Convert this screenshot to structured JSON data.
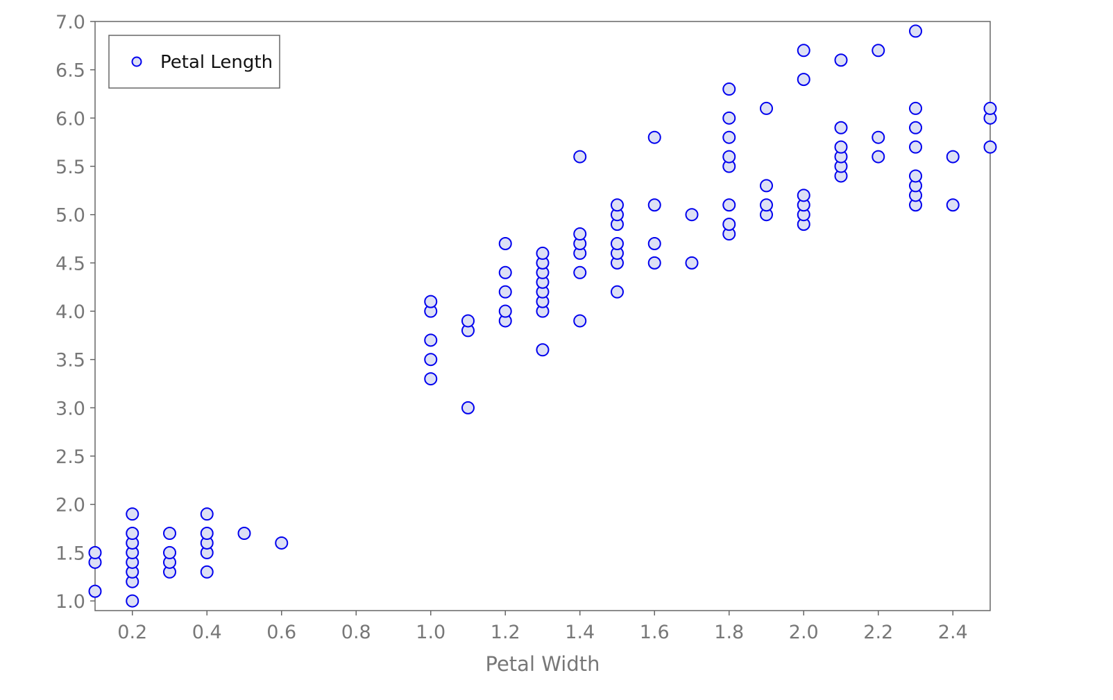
{
  "chart_data": {
    "type": "scatter",
    "xlabel": "Petal Width",
    "ylabel": "",
    "xlim": [
      0.1,
      2.5
    ],
    "ylim": [
      0.9,
      7.0
    ],
    "xticks": [
      "0.2",
      "0.4",
      "0.6",
      "0.8",
      "1.0",
      "1.2",
      "1.4",
      "1.6",
      "1.8",
      "2.0",
      "2.2",
      "2.4"
    ],
    "yticks": [
      "1.0",
      "1.5",
      "2.0",
      "2.5",
      "3.0",
      "3.5",
      "4.0",
      "4.5",
      "5.0",
      "5.5",
      "6.0",
      "6.5",
      "7.0"
    ],
    "grid": false,
    "legend_position": "top-left",
    "series": [
      {
        "name": "Petal Length",
        "marker_stroke": "#0000ee",
        "marker_fill": "#dde0f5",
        "points": [
          [
            0.1,
            1.1
          ],
          [
            0.1,
            1.4
          ],
          [
            0.1,
            1.5
          ],
          [
            0.2,
            1.0
          ],
          [
            0.2,
            1.2
          ],
          [
            0.2,
            1.3
          ],
          [
            0.2,
            1.4
          ],
          [
            0.2,
            1.5
          ],
          [
            0.2,
            1.6
          ],
          [
            0.2,
            1.7
          ],
          [
            0.2,
            1.9
          ],
          [
            0.3,
            1.3
          ],
          [
            0.3,
            1.4
          ],
          [
            0.3,
            1.5
          ],
          [
            0.3,
            1.7
          ],
          [
            0.4,
            1.3
          ],
          [
            0.4,
            1.5
          ],
          [
            0.4,
            1.6
          ],
          [
            0.4,
            1.7
          ],
          [
            0.4,
            1.9
          ],
          [
            0.5,
            1.7
          ],
          [
            0.6,
            1.6
          ],
          [
            1.0,
            3.3
          ],
          [
            1.0,
            3.5
          ],
          [
            1.0,
            3.7
          ],
          [
            1.0,
            4.0
          ],
          [
            1.0,
            4.1
          ],
          [
            1.1,
            3.0
          ],
          [
            1.1,
            3.8
          ],
          [
            1.1,
            3.9
          ],
          [
            1.2,
            3.9
          ],
          [
            1.2,
            4.0
          ],
          [
            1.2,
            4.2
          ],
          [
            1.2,
            4.4
          ],
          [
            1.2,
            4.7
          ],
          [
            1.3,
            3.6
          ],
          [
            1.3,
            4.0
          ],
          [
            1.3,
            4.1
          ],
          [
            1.3,
            4.2
          ],
          [
            1.3,
            4.3
          ],
          [
            1.3,
            4.4
          ],
          [
            1.3,
            4.5
          ],
          [
            1.3,
            4.6
          ],
          [
            1.4,
            3.9
          ],
          [
            1.4,
            4.4
          ],
          [
            1.4,
            4.6
          ],
          [
            1.4,
            4.7
          ],
          [
            1.4,
            4.8
          ],
          [
            1.4,
            5.6
          ],
          [
            1.5,
            4.2
          ],
          [
            1.5,
            4.5
          ],
          [
            1.5,
            4.6
          ],
          [
            1.5,
            4.7
          ],
          [
            1.5,
            4.9
          ],
          [
            1.5,
            5.0
          ],
          [
            1.5,
            5.1
          ],
          [
            1.6,
            4.5
          ],
          [
            1.6,
            4.7
          ],
          [
            1.6,
            5.1
          ],
          [
            1.6,
            5.8
          ],
          [
            1.7,
            4.5
          ],
          [
            1.7,
            5.0
          ],
          [
            1.8,
            4.8
          ],
          [
            1.8,
            4.9
          ],
          [
            1.8,
            5.1
          ],
          [
            1.8,
            5.5
          ],
          [
            1.8,
            5.6
          ],
          [
            1.8,
            5.8
          ],
          [
            1.8,
            6.0
          ],
          [
            1.8,
            6.3
          ],
          [
            1.9,
            5.0
          ],
          [
            1.9,
            5.1
          ],
          [
            1.9,
            5.3
          ],
          [
            1.9,
            6.1
          ],
          [
            2.0,
            4.9
          ],
          [
            2.0,
            5.0
          ],
          [
            2.0,
            5.1
          ],
          [
            2.0,
            5.2
          ],
          [
            2.0,
            6.4
          ],
          [
            2.0,
            6.7
          ],
          [
            2.1,
            5.4
          ],
          [
            2.1,
            5.5
          ],
          [
            2.1,
            5.6
          ],
          [
            2.1,
            5.7
          ],
          [
            2.1,
            5.9
          ],
          [
            2.1,
            6.6
          ],
          [
            2.2,
            5.6
          ],
          [
            2.2,
            5.8
          ],
          [
            2.2,
            6.7
          ],
          [
            2.3,
            5.1
          ],
          [
            2.3,
            5.2
          ],
          [
            2.3,
            5.3
          ],
          [
            2.3,
            5.4
          ],
          [
            2.3,
            5.7
          ],
          [
            2.3,
            5.9
          ],
          [
            2.3,
            6.1
          ],
          [
            2.3,
            6.9
          ],
          [
            2.4,
            5.1
          ],
          [
            2.4,
            5.6
          ],
          [
            2.5,
            5.7
          ],
          [
            2.5,
            6.0
          ],
          [
            2.5,
            6.1
          ]
        ]
      }
    ]
  }
}
